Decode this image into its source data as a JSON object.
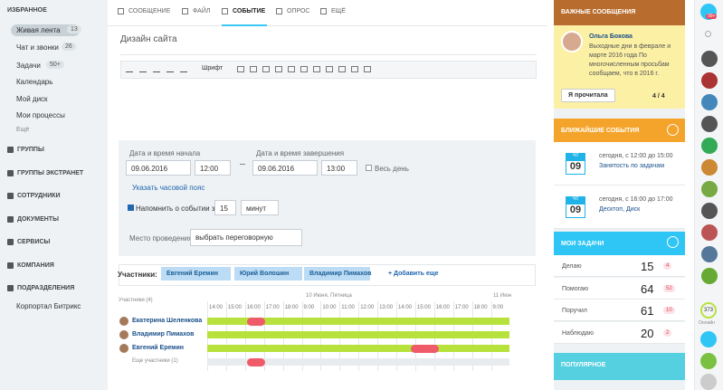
{
  "sidebar": {
    "favorites": "ИЗБРАННОЕ",
    "items": [
      {
        "label": "Живая лента",
        "count": "13"
      },
      {
        "label": "Чат и звонки",
        "count": "26"
      },
      {
        "label": "Задачи",
        "count": "50+"
      },
      {
        "label": "Календарь"
      },
      {
        "label": "Мой диск"
      },
      {
        "label": "Мои процессы"
      }
    ],
    "more": "Ещё",
    "sections": [
      "ГРУППЫ",
      "ГРУППЫ ЭКСТРАНЕТ",
      "СОТРУДНИКИ",
      "ДОКУМЕНТЫ",
      "СЕРВИСЫ",
      "КОМПАНИЯ",
      "ПОДРАЗДЕЛЕНИЯ"
    ],
    "portal": "Корпортал Битрикс"
  },
  "tabs": [
    "СООБЩЕНИЕ",
    "ФАЙЛ",
    "СОБЫТИЕ",
    "ОПРОС",
    "ЕЩЁ"
  ],
  "form": {
    "title": "Дизайн сайта",
    "toolbar_font": "Шрифт",
    "start_label": "Дата и время начала",
    "start_date": "09.06.2016",
    "start_time": "12:00",
    "end_label": "Дата и время завершения",
    "end_date": "09.06.2016",
    "end_time": "13:00",
    "all_day": "Весь день",
    "timezone": "Указать часовой пояс",
    "remind": "Напомнить о событии за",
    "remind_value": "15",
    "remind_unit": "минут",
    "location_label": "Место проведения",
    "location_value": "выбрать переговорную",
    "participants_label": "Участники:",
    "participants": [
      "Евгений Еремин",
      "Юрий Волошин",
      "Владимир Пимахов"
    ],
    "add": "+ Добавить еще"
  },
  "planner": {
    "header": "Участники (4)",
    "date1": "10 Июня, Пятница",
    "date2": "11 Июн",
    "hours": [
      "14:00",
      "15:00",
      "16:00",
      "17:00",
      "18:00",
      "9:00",
      "10:00",
      "11:00",
      "12:00",
      "13:00",
      "14:00",
      "15:00",
      "16:00",
      "17:00",
      "18:00",
      "9:00"
    ],
    "people": [
      "Екатерина Шеленкова",
      "Владимир Пимахов",
      "Евгений Еремин"
    ],
    "more": "Еще участники (1)"
  },
  "important": {
    "title": "ВАЖНЫЕ СООБЩЕНИЯ",
    "author": "Ольга Бокова",
    "text": "Выходные дни в феврале и марте 2016 года По многочисленным просьбам сообщаем, что в 2016 г.",
    "button": "Я прочитала",
    "pager": "4 / 4"
  },
  "events": {
    "title": "БЛИЖАЙШИЕ СОБЫТИЯ",
    "items": [
      {
        "weekday": "Чт",
        "day": "09",
        "time": "сегодня, с 12:00 до 15:00",
        "name": "Занятость по задачам"
      },
      {
        "weekday": "Чт",
        "day": "09",
        "time": "сегодня, с 16:00 до 17:00",
        "name": "Десктоп, Диск"
      }
    ]
  },
  "tasks": {
    "title": "МОИ ЗАДАЧИ",
    "rows": [
      {
        "label": "Делаю",
        "value": "15",
        "badge": "4"
      },
      {
        "label": "Помогаю",
        "value": "64",
        "badge": "52"
      },
      {
        "label": "Поручил",
        "value": "61",
        "badge": "10"
      },
      {
        "label": "Наблюдаю",
        "value": "20",
        "badge": "2"
      }
    ]
  },
  "popular": {
    "title": "ПОПУЛЯРНОЕ"
  },
  "rightbar": {
    "badge": "99+",
    "online_count": "373",
    "online": "Онлайн"
  }
}
